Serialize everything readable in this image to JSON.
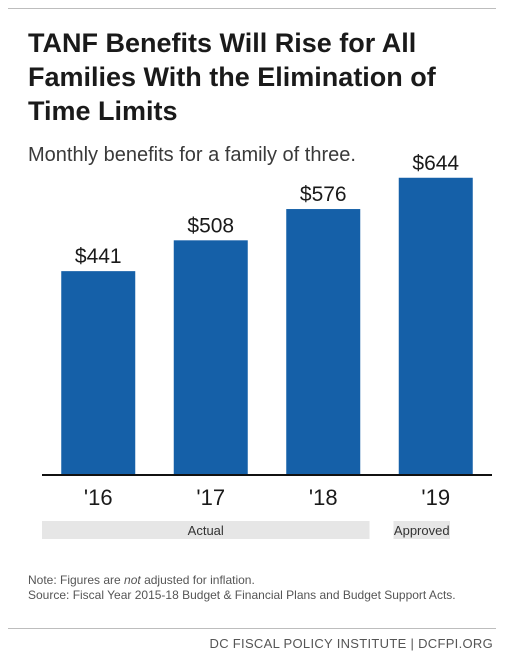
{
  "header": {
    "title": "TANF Benefits Will Rise for All Families With the Elimination of Time Limits",
    "subtitle": "Monthly benefits for a family of three."
  },
  "chart_data": {
    "type": "bar",
    "categories": [
      "'16",
      "'17",
      "'18",
      "'19"
    ],
    "values": [
      441,
      508,
      576,
      644
    ],
    "value_labels": [
      "$441",
      "$508",
      "$576",
      "$644"
    ],
    "bar_color": "#1560a8",
    "groups": [
      {
        "label": "Actual",
        "categories": [
          "'16",
          "'17",
          "'18"
        ]
      },
      {
        "label": "Approved",
        "categories": [
          "'19"
        ]
      }
    ],
    "title": "TANF Benefits Will Rise for All Families With the Elimination of Time Limits",
    "subtitle": "Monthly benefits for a family of three.",
    "ylim": [
      0,
      700
    ],
    "grid": false,
    "legend": "none"
  },
  "notes": {
    "note_prefix": "Note: Figures are ",
    "note_emphasis": "not",
    "note_suffix": " adjusted for inflation.",
    "source": "Source: Fiscal Year 2015-18 Budget & Financial Plans and Budget Support Acts."
  },
  "footer": {
    "credit": "DC FISCAL POLICY INSTITUTE | DCFPI.ORG"
  }
}
